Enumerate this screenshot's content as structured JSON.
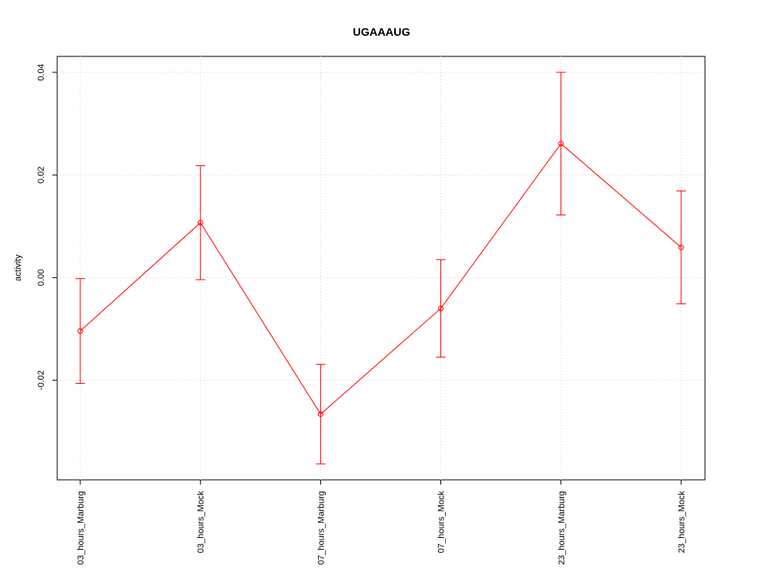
{
  "chart_data": {
    "type": "line",
    "title": "UGAAAUG",
    "y_label": "activity",
    "categories": [
      "03_hours_Marburg",
      "03_hours_Mock",
      "07_hours_Marburg",
      "07_hours_Mock",
      "23_hours_Marburg",
      "23_hours_Mock"
    ],
    "series": [
      {
        "color": "#ff0000",
        "values": [
          -0.0104,
          0.0107,
          -0.0266,
          -0.006,
          0.0261,
          0.0059
        ],
        "errors": [
          0.0102,
          0.0111,
          0.0097,
          0.0095,
          0.0139,
          0.011
        ]
      }
    ],
    "ylim": [
      -0.0394,
      0.0431
    ],
    "yticks": [
      -0.02,
      {
        "value": 0,
        "label": "0.00"
      },
      0.02,
      0.04
    ],
    "grid": true
  }
}
